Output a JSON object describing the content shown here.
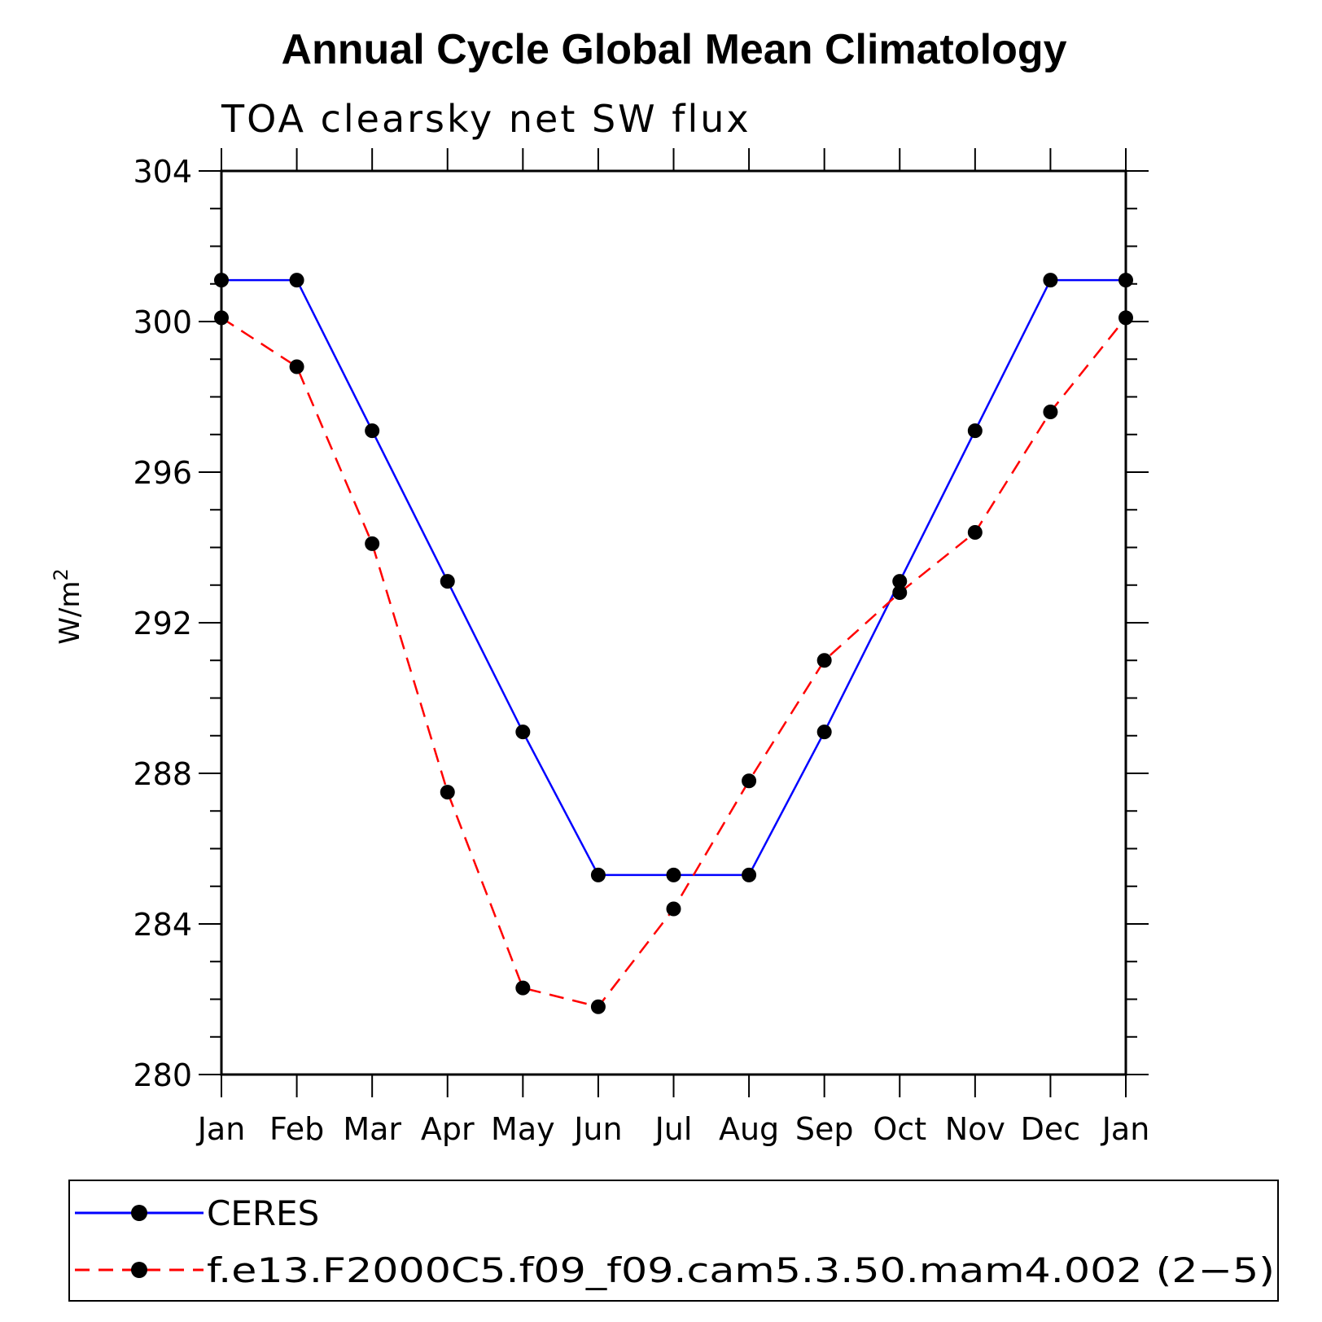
{
  "chart_data": {
    "type": "line",
    "title": "Annual Cycle Global Mean Climatology",
    "subtitle": "TOA clearsky net SW flux",
    "ylabel": "W/m",
    "ylabel_sup": "2",
    "xlabel": "",
    "categories": [
      "Jan",
      "Feb",
      "Mar",
      "Apr",
      "May",
      "Jun",
      "Jul",
      "Aug",
      "Sep",
      "Oct",
      "Nov",
      "Dec",
      "Jan"
    ],
    "ylim": [
      280,
      304
    ],
    "yticks": [
      280,
      284,
      288,
      292,
      296,
      300,
      304
    ],
    "series": [
      {
        "name": "CERES",
        "color": "#0000ff",
        "dash": "solid",
        "values": [
          301.1,
          301.1,
          297.1,
          293.1,
          289.1,
          285.3,
          285.3,
          285.3,
          289.1,
          293.1,
          297.1,
          301.1,
          301.1
        ]
      },
      {
        "name": "f.e13.F2000C5.f09_f09.cam5.3.50.mam4.002 (2−5)",
        "color": "#ff0000",
        "dash": "dashed",
        "values": [
          300.1,
          298.8,
          294.1,
          287.5,
          282.3,
          281.8,
          284.4,
          287.8,
          291.0,
          292.8,
          294.4,
          297.6,
          300.1
        ]
      }
    ],
    "marker_color": "#000000"
  }
}
